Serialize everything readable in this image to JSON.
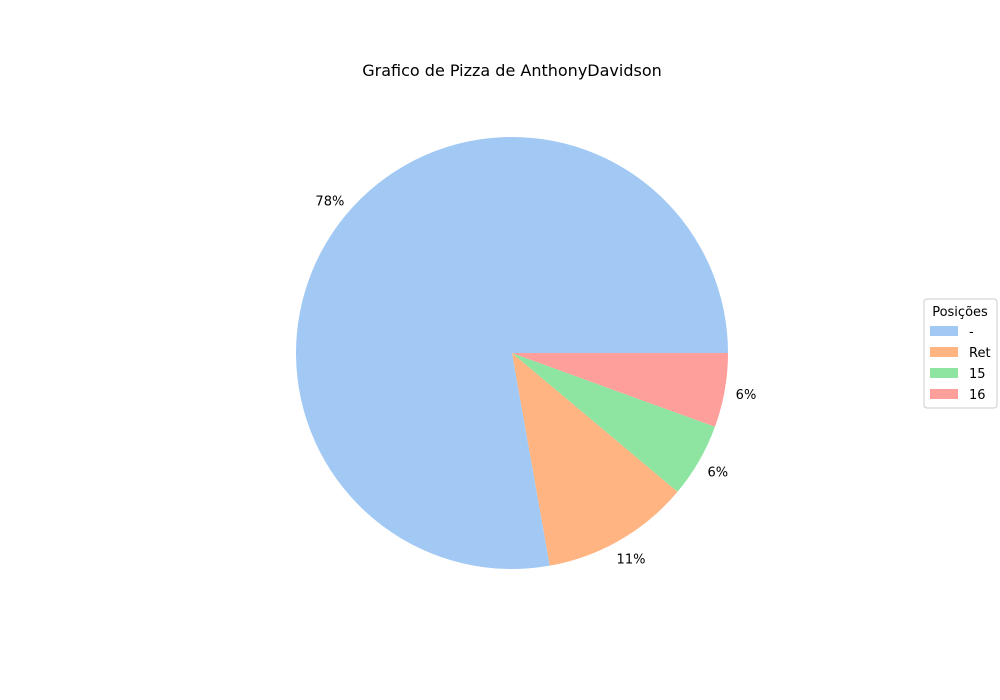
{
  "chart_data": {
    "type": "pie",
    "title": "Grafico de Pizza de AnthonyDavidson",
    "legend_title": "Posições",
    "legend_position": "right",
    "slices": [
      {
        "label": "-",
        "value": 77.8,
        "pct_label": "78%",
        "color": "#a1c9f4"
      },
      {
        "label": "Ret",
        "value": 11.1,
        "pct_label": "11%",
        "color": "#ffb482"
      },
      {
        "label": "15",
        "value": 5.55,
        "pct_label": "6%",
        "color": "#8de5a1"
      },
      {
        "label": "16",
        "value": 5.55,
        "pct_label": "6%",
        "color": "#ff9f9b"
      }
    ]
  }
}
